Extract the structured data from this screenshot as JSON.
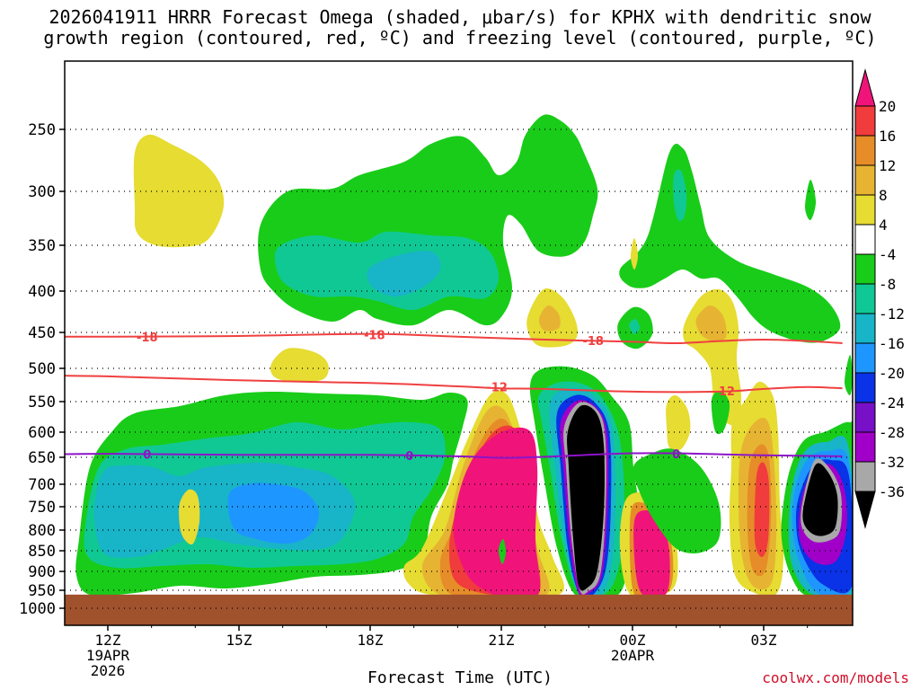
{
  "chart_data": {
    "type": "heatmap",
    "title_line1": "2026041911 HRRR Forecast Omega (shaded, μbar/s) for KPHX with dendritic snow",
    "title_line2": "growth region (contoured, red, ºC) and freezing level (contoured, purple, ºC)",
    "xlabel": "Forecast Time (UTC)",
    "credit": "coolwx.com/models",
    "y_ticks": [
      "250",
      "300",
      "350",
      "400",
      "450",
      "500",
      "550",
      "600",
      "650",
      "700",
      "750",
      "800",
      "850",
      "900",
      "950",
      "1000"
    ],
    "x_ticks": [
      {
        "hour": 12,
        "label": "12Z",
        "sub1": "19APR",
        "sub2": "2026"
      },
      {
        "hour": 15,
        "label": "15Z",
        "sub1": "",
        "sub2": ""
      },
      {
        "hour": 18,
        "label": "18Z",
        "sub1": "",
        "sub2": ""
      },
      {
        "hour": 21,
        "label": "21Z",
        "sub1": "",
        "sub2": ""
      },
      {
        "hour": 24,
        "label": "00Z",
        "sub1": "20APR",
        "sub2": ""
      },
      {
        "hour": 27,
        "label": "03Z",
        "sub1": "",
        "sub2": ""
      }
    ],
    "colorbar_labels": [
      "20",
      "16",
      "12",
      "8",
      "4",
      "-4",
      "-8",
      "-12",
      "-16",
      "-20",
      "-24",
      "-28",
      "-32",
      "-36"
    ],
    "colors": {
      "ground": "#a0522d",
      "green": "#19cc19",
      "teal": "#10c894",
      "cyan": "#18b4c8",
      "blue_light": "#1e96ff",
      "blue": "#0a32e6",
      "purple": "#7810c8",
      "violet": "#a000c8",
      "gray": "#a8a8a8",
      "black": "#000000",
      "yellow": "#e6dc32",
      "gold": "#e6b432",
      "orange": "#e68c28",
      "red": "#f03c3c",
      "magenta": "#f0147a",
      "contour_red": "#f04040",
      "contour_purple": "#8c14c8"
    },
    "contours": [
      {
        "name": "-18",
        "color": "contour_red",
        "points": [
          [
            10.9,
            456
          ],
          [
            12,
            456
          ],
          [
            15,
            455
          ],
          [
            18,
            452
          ],
          [
            20,
            456
          ],
          [
            22,
            460
          ],
          [
            24,
            463
          ],
          [
            25,
            465
          ],
          [
            26,
            462
          ],
          [
            27,
            460
          ],
          [
            28,
            462
          ],
          [
            28.8,
            465
          ]
        ]
      },
      {
        "name": "-12",
        "color": "contour_red",
        "points": [
          [
            10.9,
            511
          ],
          [
            12,
            512
          ],
          [
            15,
            518
          ],
          [
            18,
            522
          ],
          [
            20,
            527
          ],
          [
            21,
            530
          ],
          [
            22,
            531
          ],
          [
            24,
            535
          ],
          [
            26,
            535
          ],
          [
            27,
            531
          ],
          [
            28,
            528
          ],
          [
            28.8,
            530
          ]
        ]
      },
      {
        "name": "0",
        "color": "contour_purple",
        "points": [
          [
            10.9,
            644
          ],
          [
            12,
            643
          ],
          [
            15,
            645
          ],
          [
            18,
            645
          ],
          [
            20,
            648
          ],
          [
            21,
            651
          ],
          [
            22,
            649
          ],
          [
            23,
            645
          ],
          [
            24,
            642
          ],
          [
            25,
            642
          ],
          [
            26,
            644
          ],
          [
            27,
            646
          ],
          [
            28.8,
            648
          ]
        ]
      }
    ],
    "contour_labels": [
      {
        "text": "-18",
        "hour": 12.9,
        "p": 456,
        "color": "contour_red"
      },
      {
        "text": "-18",
        "hour": 18.1,
        "p": 453,
        "color": "contour_red"
      },
      {
        "text": "-18",
        "hour": 23.1,
        "p": 461,
        "color": "contour_red"
      },
      {
        "text": "-12",
        "hour": 20.9,
        "p": 528,
        "color": "contour_red"
      },
      {
        "text": "-12",
        "hour": 26.1,
        "p": 534,
        "color": "contour_red"
      },
      {
        "text": "0",
        "hour": 12.9,
        "p": 644,
        "color": "contour_purple"
      },
      {
        "text": "0",
        "hour": 18.9,
        "p": 646,
        "color": "contour_purple"
      },
      {
        "text": "0",
        "hour": 25.0,
        "p": 643,
        "color": "contour_purple"
      }
    ]
  }
}
